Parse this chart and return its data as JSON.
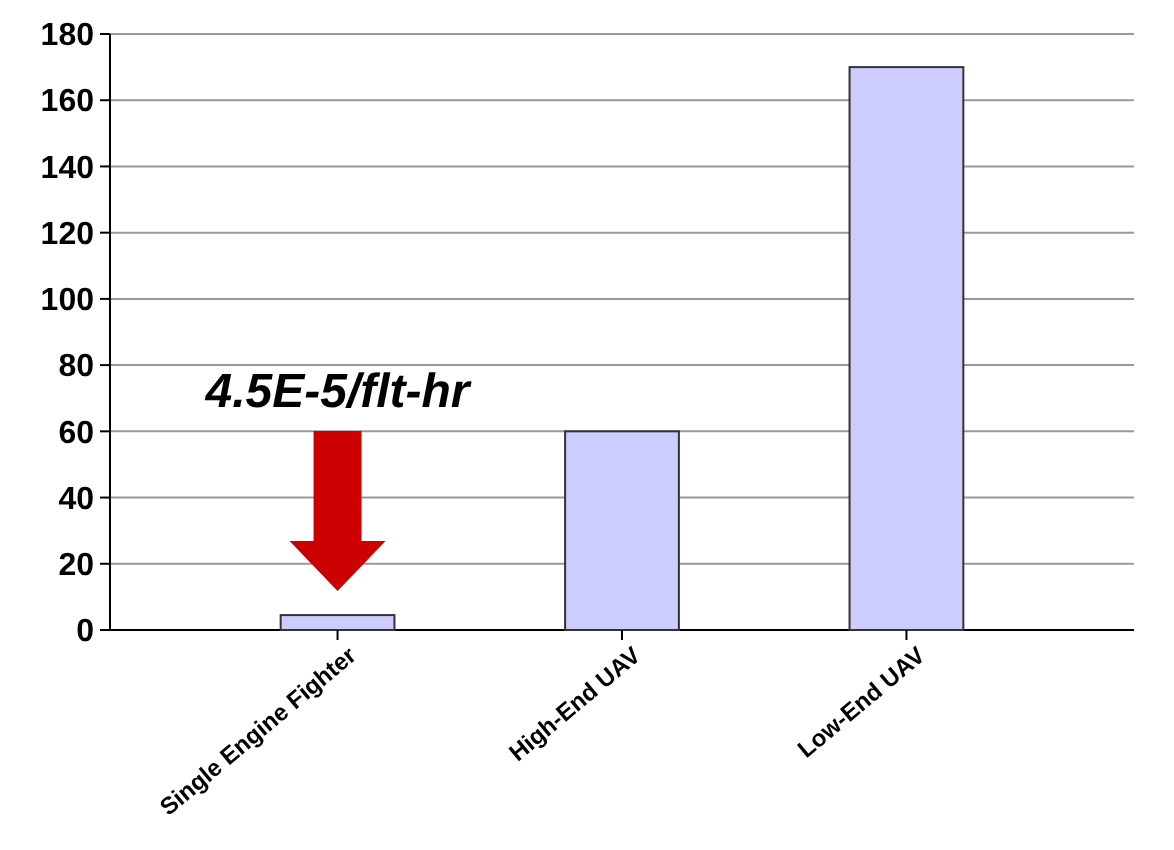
{
  "chart_data": {
    "type": "bar",
    "categories": [
      "Single Engine Fighter",
      "High-End UAV",
      "Low-End UAV"
    ],
    "values": [
      4.5,
      60,
      170
    ],
    "color": "#ccccff",
    "ylim": [
      0,
      180
    ],
    "yticks": [
      0,
      20,
      40,
      60,
      80,
      100,
      120,
      140,
      160,
      180
    ],
    "grid": "y",
    "annotations": [
      "4.5E-5/flt-hr"
    ]
  }
}
